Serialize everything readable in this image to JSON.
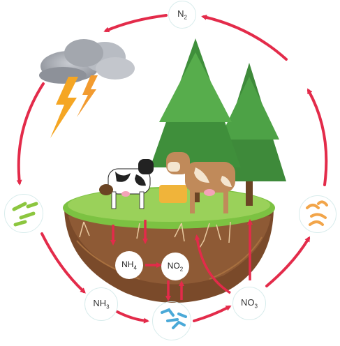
{
  "nodes": {
    "n2": {
      "base": "N",
      "sub": "2"
    },
    "nh3": {
      "base": "NH",
      "sub": "3"
    },
    "no3": {
      "base": "NO",
      "sub": "3"
    },
    "nh4": {
      "base": "NH",
      "sub": "4"
    },
    "no2": {
      "base": "NO",
      "sub": "2"
    }
  },
  "icons": {
    "storm": "thundercloud-icon",
    "bacteria_green": "green-bacteria-icon",
    "bacteria_blue": "blue-bacteria-icon",
    "bacteria_orange": "orange-bacteria-icon"
  },
  "colors": {
    "arrow": "#e32b4a",
    "soil": "#7a4a2a",
    "grass": "#7cc242",
    "tree": "#3e8a3a"
  }
}
